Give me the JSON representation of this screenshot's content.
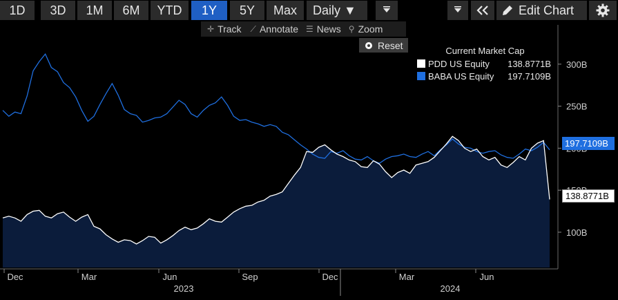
{
  "toolbar": {
    "ranges": [
      "1D",
      "3D",
      "1M",
      "6M",
      "YTD",
      "1Y",
      "5Y",
      "Max"
    ],
    "active_range": "1Y",
    "interval": "Daily ▼",
    "filter_icon": "filter-icon",
    "edit_label": "Edit Chart",
    "colors": {
      "active": "#1f5fc4",
      "button": "#2b2b2b"
    }
  },
  "subtoolbar": {
    "track": "Track",
    "annotate": "Annotate",
    "news": "News",
    "zoom": "Zoom",
    "reset": "Reset"
  },
  "legend": {
    "title": "Current Market Cap",
    "items": [
      {
        "name": "PDD US Equity",
        "value": "138.8771B",
        "color": "#ffffff"
      },
      {
        "name": "BABA US Equity",
        "value": "197.7109B",
        "color": "#1f6fe0"
      }
    ]
  },
  "chart_data": {
    "type": "area",
    "ylim": [
      58,
      350
    ],
    "y_ticks": [
      {
        "value": 100,
        "label": "100B"
      },
      {
        "value": 150,
        "label": "150B"
      },
      {
        "value": 200,
        "label": "200B"
      },
      {
        "value": 250,
        "label": "250B"
      },
      {
        "value": 300,
        "label": "300B"
      }
    ],
    "x_tick_labels": [
      "Dec",
      "Mar",
      "Jun",
      "Sep",
      "Dec",
      "Mar",
      "Jun"
    ],
    "x_year_labels": [
      "2023",
      "2024"
    ],
    "series": [
      {
        "name": "BABA US Equity",
        "last_label": "197.7109B",
        "color": "#1f6fe0",
        "values": [
          245,
          238,
          243,
          241,
          262,
          292,
          303,
          312,
          296,
          291,
          278,
          272,
          261,
          245,
          232,
          238,
          252,
          265,
          277,
          263,
          246,
          241,
          239,
          231,
          233,
          236,
          237,
          241,
          249,
          257,
          252,
          241,
          237,
          245,
          251,
          254,
          261,
          251,
          238,
          233,
          234,
          231,
          229,
          226,
          228,
          226,
          219,
          216,
          210,
          204,
          199,
          193,
          189,
          188,
          196,
          194,
          197,
          191,
          187,
          186,
          190,
          185,
          182,
          187,
          190,
          191,
          193,
          190,
          189,
          193,
          196,
          191,
          198,
          204,
          211,
          205,
          201,
          200,
          196,
          194,
          196,
          197,
          192,
          189,
          188,
          193,
          199,
          197,
          201,
          207,
          198
        ]
      },
      {
        "name": "PDD US Equity",
        "last_label": "138.8771B",
        "color": "#ffffff",
        "values": [
          117,
          119,
          117,
          113,
          121,
          125,
          126,
          119,
          117,
          122,
          124,
          118,
          113,
          118,
          121,
          107,
          104,
          97,
          92,
          88,
          91,
          90,
          86,
          90,
          95,
          94,
          87,
          91,
          96,
          102,
          106,
          103,
          105,
          110,
          116,
          113,
          112,
          118,
          124,
          128,
          131,
          132,
          136,
          138,
          143,
          145,
          148,
          158,
          168,
          177,
          196,
          195,
          201,
          204,
          198,
          193,
          190,
          186,
          184,
          178,
          177,
          185,
          181,
          172,
          165,
          171,
          174,
          170,
          180,
          182,
          184,
          189,
          197,
          205,
          214,
          209,
          200,
          196,
          199,
          190,
          186,
          189,
          180,
          177,
          183,
          190,
          186,
          200,
          206,
          209,
          139
        ]
      }
    ]
  }
}
